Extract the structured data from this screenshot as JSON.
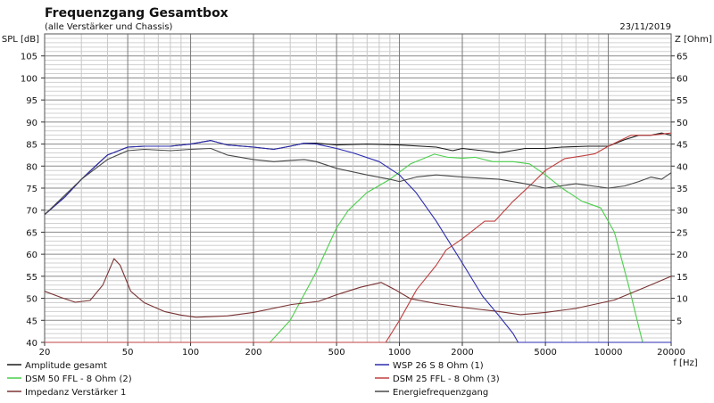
{
  "chart_data": {
    "type": "line",
    "title": "Frequenzgang Gesamtbox",
    "subtitle": "(alle Verstärker und Chassis)",
    "date": "23/11/2019",
    "xlabel": "f [Hz]",
    "ylabel": "SPL [dB]",
    "y2label": "Z [Ohm]",
    "xscale": "log",
    "xlim": [
      20,
      20000
    ],
    "ylim": [
      40,
      110
    ],
    "y2lim": [
      0,
      70
    ],
    "grid": true,
    "legend_position": "bottom",
    "xticks": [
      "20",
      "50",
      "100",
      "200",
      "500",
      "1000",
      "2000",
      "5000",
      "10000",
      "20000"
    ],
    "yticks": [
      "40",
      "45",
      "50",
      "55",
      "60",
      "65",
      "70",
      "75",
      "80",
      "85",
      "90",
      "95",
      "100",
      "105"
    ],
    "y2ticks": [
      "5",
      "10",
      "15",
      "20",
      "25",
      "30",
      "35",
      "40",
      "45",
      "50",
      "55",
      "60",
      "65"
    ],
    "series": [
      {
        "name": "Amplitude gesamt",
        "color": "#1a1a1a",
        "axis": "left",
        "x": [
          20,
          25,
          30,
          35,
          40,
          50,
          60,
          80,
          100,
          125,
          150,
          200,
          250,
          300,
          350,
          400,
          500,
          700,
          1000,
          1500,
          1800,
          2000,
          2500,
          3000,
          4000,
          5000,
          6000,
          8000,
          10000,
          12000,
          14000,
          16000,
          18000,
          20000
        ],
        "y": [
          69,
          73,
          77,
          80,
          82.5,
          84.3,
          84.5,
          84.5,
          85,
          85.8,
          84.8,
          84.3,
          83.8,
          84.5,
          85.2,
          85.2,
          84.8,
          85,
          84.8,
          84.3,
          83.5,
          84,
          83.5,
          83,
          84,
          84,
          84.3,
          84.5,
          84.5,
          86,
          87,
          87,
          87.5,
          87
        ]
      },
      {
        "name": "DSM 50 FFL - 8 Ohm (2)",
        "color": "#4ccf4c",
        "axis": "left",
        "x": [
          20,
          240,
          300,
          400,
          500,
          570,
          700,
          900,
          1130,
          1470,
          1700,
          2000,
          2300,
          2800,
          3500,
          4200,
          5000,
          6000,
          7500,
          9200,
          10700,
          12500,
          14600
        ],
        "y": [
          40,
          40,
          45,
          56,
          66,
          70,
          74,
          77,
          80.5,
          82.7,
          82,
          81.8,
          82,
          81,
          81,
          80.5,
          78,
          75,
          72,
          70.5,
          65,
          53,
          40
        ]
      },
      {
        "name": "Impedanz Verstärker 1",
        "color": "#7a3232",
        "axis": "right",
        "x": [
          20,
          24,
          28,
          33,
          38,
          43,
          46,
          51.7,
          60,
          75,
          90,
          106,
          150,
          200,
          305,
          410,
          500,
          650,
          817,
          950,
          1130,
          1500,
          2040,
          3000,
          3800,
          5000,
          7000,
          10700,
          15000,
          20000
        ],
        "y": [
          11.6,
          10.2,
          9.1,
          9.5,
          13,
          19,
          17.5,
          11.6,
          9,
          7,
          6.2,
          5.7,
          6,
          6.8,
          8.6,
          9.3,
          10.8,
          12.5,
          13.6,
          12,
          9.9,
          8.8,
          7.9,
          7,
          6.3,
          6.8,
          7.7,
          9.6,
          12.5,
          15
        ]
      },
      {
        "name": "WSP 26 S 8 Ohm (1)",
        "color": "#2b2bb0",
        "axis": "left",
        "x": [
          20,
          25,
          30,
          35,
          40,
          50,
          60,
          80,
          100,
          125,
          150,
          200,
          250,
          300,
          350,
          400,
          500,
          600,
          800,
          1000,
          1200,
          1500,
          2000,
          2500,
          3000,
          3500,
          3700,
          20000
        ],
        "y": [
          69,
          73,
          77,
          80,
          82.5,
          84.3,
          84.5,
          84.5,
          85,
          85.8,
          84.8,
          84.3,
          83.8,
          84.5,
          85.2,
          85,
          84,
          83,
          81,
          78,
          74,
          67.5,
          58,
          50.5,
          46,
          42,
          40,
          40
        ]
      },
      {
        "name": "DSM 25 FFL - 8 Ohm (3)",
        "color": "#c04040",
        "axis": "left",
        "x": [
          20,
          860,
          1000,
          1210,
          1500,
          1675,
          2000,
          2560,
          2860,
          3500,
          4200,
          5000,
          6190,
          7500,
          8650,
          10000,
          12850,
          16000,
          20000
        ],
        "y": [
          40,
          40,
          45,
          52,
          57.5,
          61,
          63.5,
          67.5,
          67.5,
          72,
          75.5,
          79,
          81.7,
          82.3,
          82.8,
          84.5,
          87,
          87,
          87.5
        ]
      },
      {
        "name": "Energiefrequenzgang",
        "color": "#484848",
        "axis": "left",
        "x": [
          20,
          30,
          40,
          50,
          60,
          80,
          100,
          125,
          150,
          200,
          250,
          300,
          350,
          400,
          500,
          700,
          900,
          1000,
          1200,
          1500,
          2000,
          3000,
          4000,
          5000,
          7000,
          10000,
          12000,
          14000,
          16000,
          18000,
          20000
        ],
        "y": [
          69,
          77,
          81.5,
          83.5,
          83.8,
          83.5,
          83.8,
          84,
          82.5,
          81.5,
          81,
          81.3,
          81.5,
          81,
          79.5,
          78,
          77,
          76.5,
          77.5,
          78,
          77.5,
          77,
          76,
          75,
          76,
          75,
          75.5,
          76.5,
          77.5,
          77,
          78.5
        ]
      }
    ]
  }
}
